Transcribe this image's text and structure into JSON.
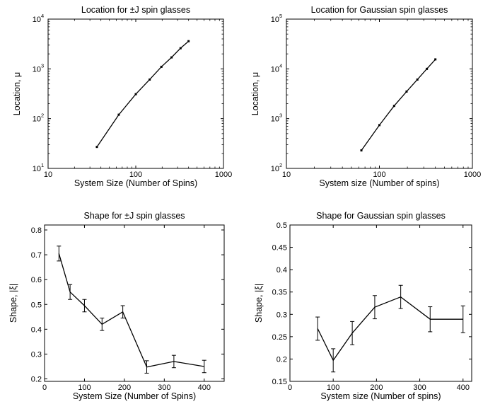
{
  "chart_data": [
    {
      "type": "line",
      "title": "Location for ±J spin glasses",
      "xlabel": "System Size (Number of Spins)",
      "ylabel": "Location, μ",
      "xscale": "log",
      "yscale": "log",
      "xlim": [
        10,
        1000
      ],
      "ylim": [
        10,
        10000
      ],
      "xticks": [
        {
          "v": 10,
          "label": "10"
        },
        {
          "v": 100,
          "label": "100"
        },
        {
          "v": 1000,
          "label": "1000"
        }
      ],
      "yticks": [
        {
          "v": 10,
          "base": "10",
          "exp": "1"
        },
        {
          "v": 100,
          "base": "10",
          "exp": "2"
        },
        {
          "v": 1000,
          "base": "10",
          "exp": "3"
        },
        {
          "v": 10000,
          "base": "10",
          "exp": "4"
        }
      ],
      "grid": false,
      "series": [
        {
          "x": [
            36,
            64,
            100,
            144,
            196,
            256,
            324,
            400
          ],
          "y": [
            27,
            120,
            310,
            610,
            1100,
            1700,
            2600,
            3600
          ]
        }
      ]
    },
    {
      "type": "line",
      "title": "Location for Gaussian spin glasses",
      "xlabel": "System size (Number of spins)",
      "ylabel": "Location, μ",
      "xscale": "log",
      "yscale": "log",
      "xlim": [
        10,
        1000
      ],
      "ylim": [
        100,
        100000
      ],
      "xticks": [
        {
          "v": 10,
          "label": "10"
        },
        {
          "v": 100,
          "label": "100"
        },
        {
          "v": 1000,
          "label": "1000"
        }
      ],
      "yticks": [
        {
          "v": 100,
          "base": "10",
          "exp": "2"
        },
        {
          "v": 1000,
          "base": "10",
          "exp": "3"
        },
        {
          "v": 10000,
          "base": "10",
          "exp": "4"
        },
        {
          "v": 100000,
          "base": "10",
          "exp": "5"
        }
      ],
      "grid": false,
      "series": [
        {
          "x": [
            64,
            100,
            144,
            196,
            256,
            324,
            400
          ],
          "y": [
            230,
            740,
            1800,
            3500,
            6100,
            10000,
            15500
          ]
        }
      ]
    },
    {
      "type": "line",
      "title": "Shape for ±J spin glasses",
      "xlabel": "System Size (Number of Spins)",
      "ylabel": "Shape, |ξ|",
      "xscale": "linear",
      "yscale": "linear",
      "xlim": [
        0,
        450
      ],
      "ylim": [
        0.19,
        0.82
      ],
      "xticks": [
        {
          "v": 0,
          "label": "0"
        },
        {
          "v": 100,
          "label": "100"
        },
        {
          "v": 200,
          "label": "200"
        },
        {
          "v": 300,
          "label": "300"
        },
        {
          "v": 400,
          "label": "400"
        }
      ],
      "yticks": [
        {
          "v": 0.2,
          "label": "0.2"
        },
        {
          "v": 0.3,
          "label": "0.3"
        },
        {
          "v": 0.4,
          "label": "0.4"
        },
        {
          "v": 0.5,
          "label": "0.5"
        },
        {
          "v": 0.6,
          "label": "0.6"
        },
        {
          "v": 0.7,
          "label": "0.7"
        },
        {
          "v": 0.8,
          "label": "0.8"
        }
      ],
      "grid": false,
      "series": [
        {
          "x": [
            36,
            64,
            100,
            144,
            196,
            256,
            324,
            400
          ],
          "y": [
            0.705,
            0.55,
            0.495,
            0.42,
            0.47,
            0.248,
            0.27,
            0.25
          ],
          "err": [
            0.03,
            0.03,
            0.025,
            0.025,
            0.025,
            0.025,
            0.025,
            0.025
          ]
        }
      ]
    },
    {
      "type": "line",
      "title": "Shape for Gaussian spin glasses",
      "xlabel": "System size (Number of spins)",
      "ylabel": "Shape, |ξ|",
      "xscale": "linear",
      "yscale": "linear",
      "xlim": [
        0,
        420
      ],
      "ylim": [
        0.15,
        0.5
      ],
      "xticks": [
        {
          "v": 0,
          "label": "0"
        },
        {
          "v": 100,
          "label": "100"
        },
        {
          "v": 200,
          "label": "200"
        },
        {
          "v": 300,
          "label": "300"
        },
        {
          "v": 400,
          "label": "400"
        }
      ],
      "yticks": [
        {
          "v": 0.15,
          "label": "0.15"
        },
        {
          "v": 0.2,
          "label": "0.2"
        },
        {
          "v": 0.25,
          "label": "0.25"
        },
        {
          "v": 0.3,
          "label": "0.3"
        },
        {
          "v": 0.35,
          "label": "0.35"
        },
        {
          "v": 0.4,
          "label": "0.4"
        },
        {
          "v": 0.45,
          "label": "0.45"
        },
        {
          "v": 0.5,
          "label": "0.5"
        }
      ],
      "grid": false,
      "series": [
        {
          "x": [
            64,
            100,
            144,
            196,
            256,
            324,
            400
          ],
          "y": [
            0.268,
            0.197,
            0.258,
            0.316,
            0.339,
            0.289,
            0.289
          ],
          "err": [
            0.026,
            0.026,
            0.026,
            0.026,
            0.026,
            0.028,
            0.03
          ]
        }
      ]
    }
  ]
}
